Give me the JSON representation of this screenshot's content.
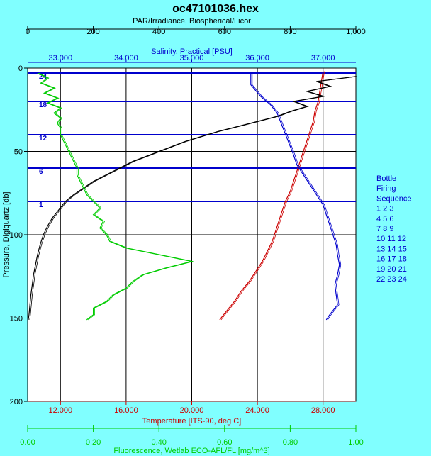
{
  "title": "oc47101036.hex",
  "legend": {
    "lines": [
      "Bottle",
      "Firing",
      "Sequence",
      "1  2  3",
      "4  5  6",
      "7  8  9",
      "10 11 12",
      "13 14 15",
      "16 17 18",
      "19 20 21",
      "22 23 24"
    ],
    "color": "#0000cc"
  },
  "chart_data": {
    "type": "line",
    "title": "oc47101036.hex",
    "y_axis": {
      "label": "Pressure, Digiquartz [db]",
      "range": [
        0,
        200
      ],
      "inverted": true,
      "ticks": [
        "0",
        "50",
        "100",
        "150",
        "200"
      ],
      "color": "#000000"
    },
    "axes_top": [
      {
        "label": "PAR/Irradiance, Biospherical/Licor",
        "range": [
          0,
          1000
        ],
        "ticks": [
          "0",
          "200",
          "400",
          "600",
          "800",
          "1,000"
        ],
        "color": "#000000"
      },
      {
        "label": "Salinity, Practical [PSU]",
        "range": [
          32.5,
          37.5
        ],
        "ticks": [
          "33.000",
          "34.000",
          "35.000",
          "36.000",
          "37.000"
        ],
        "color": "#0000cc"
      }
    ],
    "axes_bottom": [
      {
        "label": "Temperature [ITS-90, deg C]",
        "range": [
          10,
          30
        ],
        "ticks": [
          "12.000",
          "16.000",
          "20.000",
          "24.000",
          "28.000"
        ],
        "color": "#cc0000"
      },
      {
        "label": "Fluorescence, Wetlab ECO-AFL/FL [mg/m^3]",
        "range": [
          0,
          1
        ],
        "ticks": [
          "0.00",
          "0.20",
          "0.40",
          "0.60",
          "0.80",
          "1.00"
        ],
        "color": "#00cc00"
      }
    ],
    "grid": true,
    "bottle_firings": [
      {
        "label": "24",
        "pressure": 3
      },
      {
        "label": "18",
        "pressure": 20
      },
      {
        "label": "12",
        "pressure": 40
      },
      {
        "label": "6",
        "pressure": 60
      },
      {
        "label": "1",
        "pressure": 80
      }
    ],
    "series": [
      {
        "name": "Temperature [ITS-90, deg C]",
        "axis": "bottom-0",
        "color": "#cc0000",
        "points": [
          [
            28.0,
            2
          ],
          [
            27.9,
            8
          ],
          [
            27.8,
            14
          ],
          [
            27.7,
            20
          ],
          [
            27.5,
            26
          ],
          [
            27.4,
            32
          ],
          [
            27.2,
            38
          ],
          [
            27.0,
            44
          ],
          [
            26.8,
            50
          ],
          [
            26.6,
            56
          ],
          [
            26.4,
            62
          ],
          [
            26.2,
            68
          ],
          [
            26.0,
            74
          ],
          [
            25.7,
            80
          ],
          [
            25.5,
            86
          ],
          [
            25.3,
            92
          ],
          [
            25.1,
            98
          ],
          [
            24.9,
            104
          ],
          [
            24.6,
            110
          ],
          [
            24.3,
            116
          ],
          [
            23.9,
            122
          ],
          [
            23.5,
            128
          ],
          [
            23.0,
            134
          ],
          [
            22.6,
            140
          ],
          [
            22.1,
            146
          ],
          [
            21.7,
            151
          ]
        ]
      },
      {
        "name": "Salinity, Practical [PSU]",
        "axis": "top-1",
        "color": "#0000cc",
        "points": [
          [
            35.9,
            3
          ],
          [
            35.9,
            10
          ],
          [
            36.05,
            17
          ],
          [
            36.2,
            22
          ],
          [
            36.3,
            27
          ],
          [
            36.35,
            32
          ],
          [
            36.4,
            37
          ],
          [
            36.45,
            42
          ],
          [
            36.5,
            47
          ],
          [
            36.55,
            52
          ],
          [
            36.6,
            58
          ],
          [
            36.7,
            64
          ],
          [
            36.8,
            70
          ],
          [
            36.9,
            76
          ],
          [
            37.0,
            82
          ],
          [
            37.05,
            88
          ],
          [
            37.1,
            94
          ],
          [
            37.15,
            100
          ],
          [
            37.2,
            106
          ],
          [
            37.22,
            112
          ],
          [
            37.25,
            118
          ],
          [
            37.22,
            124
          ],
          [
            37.18,
            130
          ],
          [
            37.2,
            136
          ],
          [
            37.22,
            142
          ],
          [
            37.1,
            148
          ],
          [
            37.05,
            151
          ]
        ]
      },
      {
        "name": "PAR/Irradiance, Biospherical/Licor",
        "axis": "top-0",
        "color": "#000000",
        "points": [
          [
            1000,
            5
          ],
          [
            880,
            8
          ],
          [
            920,
            11
          ],
          [
            850,
            14
          ],
          [
            900,
            17
          ],
          [
            810,
            20
          ],
          [
            850,
            23
          ],
          [
            800,
            26
          ],
          [
            760,
            29
          ],
          [
            700,
            32
          ],
          [
            640,
            35
          ],
          [
            580,
            38
          ],
          [
            530,
            41
          ],
          [
            480,
            44
          ],
          [
            440,
            47
          ],
          [
            400,
            50
          ],
          [
            360,
            53
          ],
          [
            320,
            56
          ],
          [
            280,
            60
          ],
          [
            240,
            64
          ],
          [
            200,
            68
          ],
          [
            170,
            72
          ],
          [
            140,
            76
          ],
          [
            115,
            80
          ],
          [
            95,
            85
          ],
          [
            75,
            90
          ],
          [
            60,
            95
          ],
          [
            48,
            100
          ],
          [
            38,
            106
          ],
          [
            30,
            112
          ],
          [
            24,
            118
          ],
          [
            18,
            124
          ],
          [
            14,
            130
          ],
          [
            10,
            136
          ],
          [
            7,
            142
          ],
          [
            4,
            148
          ],
          [
            2,
            151
          ]
        ]
      },
      {
        "name": "Fluorescence, Wetlab ECO-AFL/FL [mg/m^3]",
        "axis": "bottom-1",
        "color": "#00cc00",
        "points": [
          [
            0.03,
            3
          ],
          [
            0.06,
            6
          ],
          [
            0.04,
            9
          ],
          [
            0.08,
            12
          ],
          [
            0.05,
            15
          ],
          [
            0.09,
            18
          ],
          [
            0.06,
            21
          ],
          [
            0.1,
            24
          ],
          [
            0.08,
            27
          ],
          [
            0.1,
            30
          ],
          [
            0.09,
            33
          ],
          [
            0.1,
            36
          ],
          [
            0.1,
            40
          ],
          [
            0.11,
            44
          ],
          [
            0.12,
            48
          ],
          [
            0.13,
            52
          ],
          [
            0.14,
            56
          ],
          [
            0.15,
            60
          ],
          [
            0.15,
            64
          ],
          [
            0.16,
            68
          ],
          [
            0.17,
            72
          ],
          [
            0.18,
            76
          ],
          [
            0.2,
            80
          ],
          [
            0.22,
            84
          ],
          [
            0.2,
            88
          ],
          [
            0.23,
            92
          ],
          [
            0.22,
            96
          ],
          [
            0.24,
            100
          ],
          [
            0.25,
            104
          ],
          [
            0.3,
            108
          ],
          [
            0.4,
            112
          ],
          [
            0.5,
            116
          ],
          [
            0.42,
            120
          ],
          [
            0.35,
            124
          ],
          [
            0.32,
            128
          ],
          [
            0.3,
            132
          ],
          [
            0.26,
            136
          ],
          [
            0.24,
            140
          ],
          [
            0.2,
            144
          ],
          [
            0.2,
            148
          ],
          [
            0.18,
            151
          ]
        ]
      }
    ]
  }
}
